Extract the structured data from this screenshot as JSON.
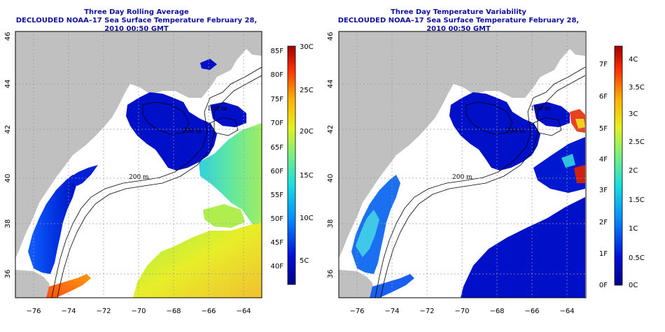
{
  "left_panel": {
    "title_line1": "Three Day Rolling Average",
    "title_line2": "DECLOUDED NOAA–17 Sea Surface Temperature February 28, 2010 00:50 GMT",
    "colorbar_f": [
      "85F",
      "80F",
      "75F",
      "70F",
      "65F",
      "60F",
      "55F",
      "50F",
      "45F",
      "40F"
    ],
    "colorbar_c": [
      "30C",
      "25C",
      "20C",
      "15C",
      "10C",
      "5C"
    ]
  },
  "right_panel": {
    "title_line1": "Three Day Temperature Variability",
    "title_line2": "DECLOUDED NOAA–17 Sea Surface Temperature February 28, 2010 00:50 GMT",
    "colorbar_f": [
      "7F",
      "6F",
      "5F",
      "4F",
      "3F",
      "2F",
      "1F",
      "0F"
    ],
    "colorbar_c": [
      "4C",
      "3.5C",
      "3C",
      "2.5C",
      "2C",
      "1.5C",
      "1C",
      "0.5C",
      "0C"
    ]
  },
  "axes": {
    "lon_ticks": [
      "−76",
      "−74",
      "−72",
      "−70",
      "−68",
      "−66",
      "−64"
    ],
    "lat_ticks": [
      "36",
      "38",
      "40",
      "42",
      "44",
      "46"
    ]
  },
  "contour_labels": [
    "100 m",
    "200 m",
    "200 m",
    "200 m"
  ],
  "colors": {
    "land": "#c0c0c0",
    "water_nodata": "#ffffff",
    "cold_water": "#0010c8",
    "title": "#1010a0",
    "grid": "#9a9a9a"
  },
  "map_extent": {
    "lon_min": -77,
    "lon_max": -63,
    "lat_min": 35,
    "lat_max": 46
  }
}
